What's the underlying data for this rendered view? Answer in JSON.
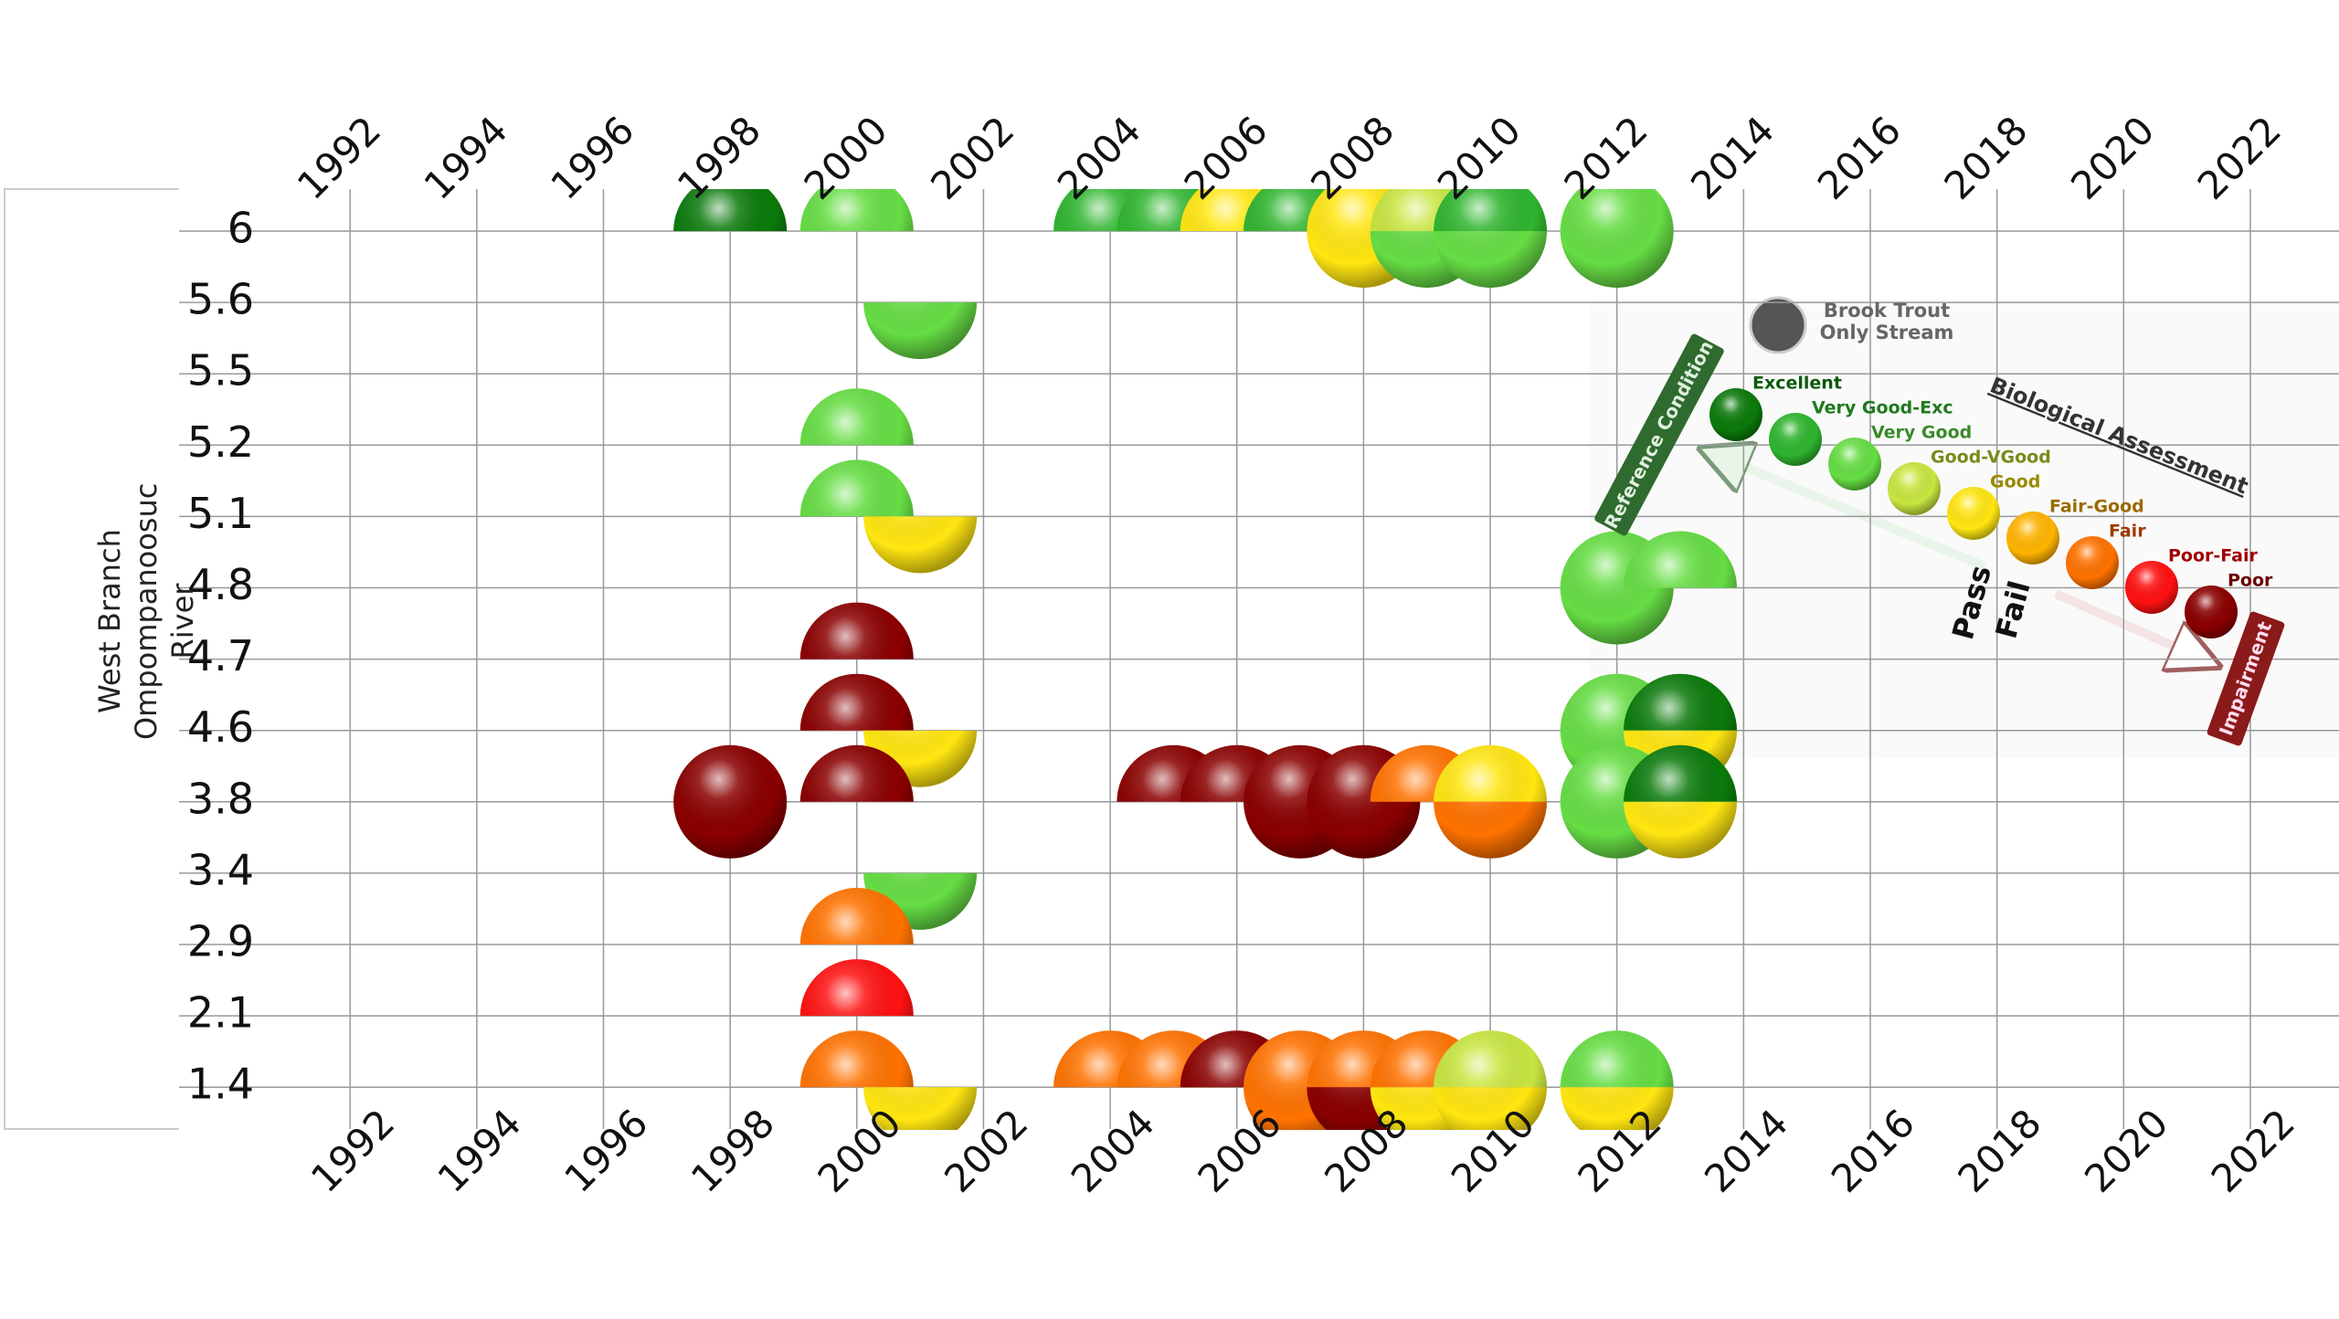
{
  "chart_data": {
    "type": "sphere-grid",
    "y_label": "West Branch Ompompanoosuc River",
    "categories": [
      6,
      5.6,
      5.5,
      5.2,
      5.1,
      4.8,
      4.7,
      4.6,
      3.8,
      3.4,
      2.9,
      2.1,
      1.4
    ],
    "xlim": [
      1989.3,
      2023.4
    ],
    "xticks": [
      1992,
      1994,
      1996,
      1998,
      2000,
      2002,
      2004,
      2006,
      2008,
      2010,
      2012,
      2014,
      2016,
      2018,
      2020,
      2022
    ],
    "grid": true,
    "points": [
      {
        "x": 1998,
        "y": 6,
        "rating": "Excellent",
        "half": "upper"
      },
      {
        "x": 2000,
        "y": 6,
        "rating": "Very Good",
        "half": "upper"
      },
      {
        "x": 2004,
        "y": 6,
        "rating": "Very Good-Exc",
        "half": "upper"
      },
      {
        "x": 2005,
        "y": 6,
        "rating": "Very Good-Exc",
        "half": "upper"
      },
      {
        "x": 2006,
        "y": 6,
        "rating": "Good",
        "half": "upper"
      },
      {
        "x": 2007,
        "y": 6,
        "rating": "Very Good-Exc",
        "half": "upper"
      },
      {
        "x": 2008,
        "y": 6,
        "rating": "Good",
        "half": "whole"
      },
      {
        "x": 2009,
        "y": 6,
        "rating": "Good-VGood",
        "half": "upper"
      },
      {
        "x": 2009,
        "y": 6,
        "rating": "Very Good",
        "half": "lower"
      },
      {
        "x": 2010,
        "y": 6,
        "rating": "Very Good-Exc",
        "half": "upper"
      },
      {
        "x": 2010,
        "y": 6,
        "rating": "Very Good",
        "half": "lower"
      },
      {
        "x": 2012,
        "y": 6,
        "rating": "Very Good",
        "half": "whole"
      },
      {
        "x": 2001,
        "y": 5.6,
        "rating": "Very Good",
        "half": "lower"
      },
      {
        "x": 2000,
        "y": 5.2,
        "rating": "Very Good",
        "half": "upper"
      },
      {
        "x": 2000,
        "y": 5.1,
        "rating": "Very Good",
        "half": "upper"
      },
      {
        "x": 2001,
        "y": 5.1,
        "rating": "Good",
        "half": "lower"
      },
      {
        "x": 2012,
        "y": 4.8,
        "rating": "Very Good",
        "half": "whole"
      },
      {
        "x": 2013,
        "y": 4.8,
        "rating": "Very Good",
        "half": "upper"
      },
      {
        "x": 2000,
        "y": 4.7,
        "rating": "Poor",
        "half": "upper"
      },
      {
        "x": 2000,
        "y": 4.6,
        "rating": "Poor",
        "half": "upper"
      },
      {
        "x": 2001,
        "y": 4.6,
        "rating": "Good",
        "half": "lower"
      },
      {
        "x": 2012,
        "y": 4.6,
        "rating": "Very Good",
        "half": "whole"
      },
      {
        "x": 2013,
        "y": 4.6,
        "rating": "Excellent",
        "half": "upper"
      },
      {
        "x": 2013,
        "y": 4.6,
        "rating": "Good",
        "half": "lower"
      },
      {
        "x": 1998,
        "y": 3.8,
        "rating": "Poor",
        "half": "whole"
      },
      {
        "x": 2000,
        "y": 3.8,
        "rating": "Poor",
        "half": "upper"
      },
      {
        "x": 2005,
        "y": 3.8,
        "rating": "Poor",
        "half": "upper"
      },
      {
        "x": 2006,
        "y": 3.8,
        "rating": "Poor",
        "half": "upper"
      },
      {
        "x": 2007,
        "y": 3.8,
        "rating": "Poor",
        "half": "whole"
      },
      {
        "x": 2008,
        "y": 3.8,
        "rating": "Poor",
        "half": "whole"
      },
      {
        "x": 2009,
        "y": 3.8,
        "rating": "Fair",
        "half": "upper"
      },
      {
        "x": 2010,
        "y": 3.8,
        "rating": "Good",
        "half": "upper"
      },
      {
        "x": 2010,
        "y": 3.8,
        "rating": "Fair",
        "half": "lower"
      },
      {
        "x": 2012,
        "y": 3.8,
        "rating": "Very Good",
        "half": "whole"
      },
      {
        "x": 2013,
        "y": 3.8,
        "rating": "Excellent",
        "half": "upper"
      },
      {
        "x": 2013,
        "y": 3.8,
        "rating": "Good",
        "half": "lower"
      },
      {
        "x": 2001,
        "y": 3.4,
        "rating": "Very Good",
        "half": "lower"
      },
      {
        "x": 2000,
        "y": 2.9,
        "rating": "Fair",
        "half": "upper"
      },
      {
        "x": 2000,
        "y": 2.1,
        "rating": "Poor-Fair",
        "half": "upper"
      },
      {
        "x": 2000,
        "y": 1.4,
        "rating": "Fair",
        "half": "upper"
      },
      {
        "x": 2001,
        "y": 1.4,
        "rating": "Good",
        "half": "lower"
      },
      {
        "x": 2004,
        "y": 1.4,
        "rating": "Fair",
        "half": "upper"
      },
      {
        "x": 2005,
        "y": 1.4,
        "rating": "Fair",
        "half": "upper"
      },
      {
        "x": 2006,
        "y": 1.4,
        "rating": "Poor",
        "half": "upper"
      },
      {
        "x": 2007,
        "y": 1.4,
        "rating": "Fair",
        "half": "whole"
      },
      {
        "x": 2008,
        "y": 1.4,
        "rating": "Fair",
        "half": "upper"
      },
      {
        "x": 2008,
        "y": 1.4,
        "rating": "Poor",
        "half": "lower"
      },
      {
        "x": 2009,
        "y": 1.4,
        "rating": "Fair",
        "half": "upper"
      },
      {
        "x": 2009,
        "y": 1.4,
        "rating": "Good",
        "half": "lower"
      },
      {
        "x": 2010,
        "y": 1.4,
        "rating": "Good-VGood",
        "half": "upper"
      },
      {
        "x": 2010,
        "y": 1.4,
        "rating": "Good",
        "half": "lower"
      },
      {
        "x": 2012,
        "y": 1.4,
        "rating": "Very Good",
        "half": "upper"
      },
      {
        "x": 2012,
        "y": 1.4,
        "rating": "Good",
        "half": "lower"
      }
    ],
    "legend": {
      "title": "Biological Assessment",
      "icon_label": "Brook Trout Only Stream",
      "reference_label": "Reference Condition",
      "impairment_label": "Impairment",
      "pass_label": "Pass",
      "fail_label": "Fail",
      "levels": [
        {
          "name": "Excellent",
          "color": "#0b7a0b",
          "label_color": "#0b5a0b"
        },
        {
          "name": "Very Good-Exc",
          "color": "#2fb52f",
          "label_color": "#1d7a1d"
        },
        {
          "name": "Very Good",
          "color": "#66dd44",
          "label_color": "#3a8a2a"
        },
        {
          "name": "Good-VGood",
          "color": "#c8e640",
          "label_color": "#7a8a1a"
        },
        {
          "name": "Good",
          "color": "#ffe611",
          "label_color": "#9a8a00"
        },
        {
          "name": "Fair-Good",
          "color": "#ffb400",
          "label_color": "#9a6a00"
        },
        {
          "name": "Fair",
          "color": "#ff7200",
          "label_color": "#a03a00"
        },
        {
          "name": "Poor-Fair",
          "color": "#ff1111",
          "label_color": "#a00000"
        },
        {
          "name": "Poor",
          "color": "#8b0000",
          "label_color": "#6a0000"
        }
      ]
    }
  }
}
